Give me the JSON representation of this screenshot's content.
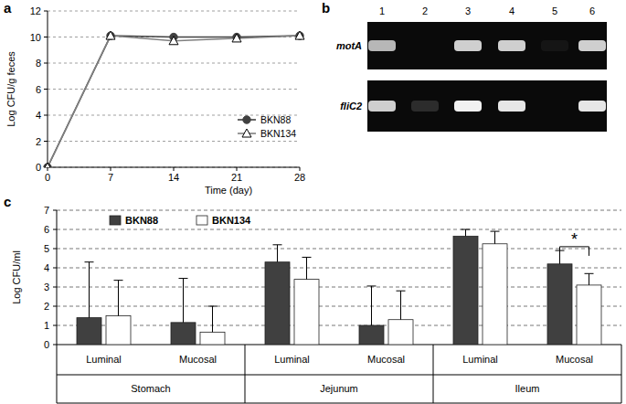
{
  "panel_labels": [
    "a",
    "b",
    "c"
  ],
  "chart_data": [
    {
      "type": "line",
      "x_label": "Time (day)",
      "y_label": "Log CFU/g feces",
      "x": [
        0,
        7,
        14,
        21,
        28
      ],
      "xlim": [
        0,
        28
      ],
      "xticks": [
        0,
        7,
        14,
        21,
        28
      ],
      "ylim": [
        0,
        12
      ],
      "yticks": [
        0,
        2,
        4,
        6,
        8,
        10,
        12
      ],
      "grid": true,
      "legend": "lower right",
      "series": [
        {
          "name": "BKN88",
          "color": "#404040",
          "marker": "circle",
          "values": [
            0,
            10.1,
            10.0,
            10.0,
            10.1
          ]
        },
        {
          "name": "BKN134",
          "color": "#808080",
          "marker": "open-triangle",
          "values": [
            0,
            10.1,
            9.7,
            9.9,
            10.1
          ]
        }
      ]
    },
    {
      "type": "bar",
      "y_label": "Log CFU/ml",
      "categories": [
        "Luminal",
        "Mucosal",
        "Luminal",
        "Mucosal",
        "Luminal",
        "Mucosal"
      ],
      "category_groups": [
        "Stomach",
        "Jejunum",
        "Ileum"
      ],
      "ylim": [
        0,
        7
      ],
      "yticks": [
        0,
        1,
        2,
        3,
        4,
        5,
        6,
        7
      ],
      "grid": true,
      "legend": "upper left",
      "series": [
        {
          "name": "BKN88",
          "color": "#404040",
          "values": [
            1.4,
            1.15,
            4.3,
            1.0,
            5.65,
            4.2
          ],
          "errors": [
            2.9,
            2.3,
            0.9,
            2.05,
            0.35,
            0.7
          ]
        },
        {
          "name": "BKN134",
          "color": "#ffffff",
          "values": [
            1.5,
            0.65,
            3.4,
            1.3,
            5.25,
            3.1
          ],
          "errors": [
            1.85,
            1.35,
            1.15,
            1.5,
            0.65,
            0.6
          ]
        }
      ],
      "annotations": [
        {
          "text": "*",
          "category_index": 5,
          "y": 5.1
        }
      ]
    }
  ],
  "gel": {
    "lanes": [
      "1",
      "2",
      "3",
      "4",
      "5",
      "6"
    ],
    "rows": [
      {
        "label": "motA",
        "bands": [
          0.75,
          0,
          0.85,
          0.85,
          0.05,
          0.85
        ]
      },
      {
        "label": "fliC2",
        "bands": [
          0.85,
          0.15,
          1,
          0.95,
          0,
          0.95
        ]
      }
    ]
  }
}
